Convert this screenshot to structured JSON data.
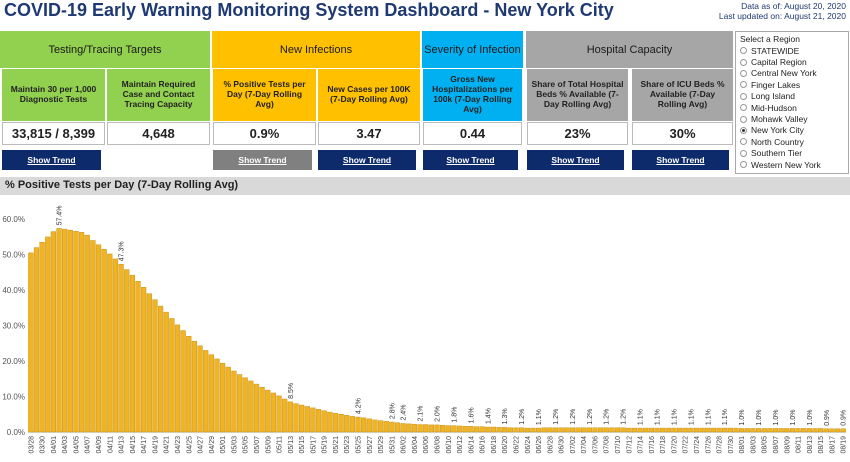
{
  "header": {
    "title": "COVID-19 Early Warning Monitoring System Dashboard - New York City",
    "data_as_of": "Data as of: August 20, 2020",
    "last_updated": "Last updated on: August 21, 2020"
  },
  "groups": [
    {
      "title": "Testing/Tracing Targets",
      "color": "#92d050",
      "metrics": [
        {
          "label": "Maintain 30 per 1,000 Diagnostic Tests",
          "value": "33,815 / 8,399",
          "button": "Show Trend"
        },
        {
          "label": "Maintain Required Case and Contact Tracing Capacity",
          "value": "4,648"
        }
      ]
    },
    {
      "title": "New Infections",
      "color": "#ffc000",
      "metrics": [
        {
          "label": "% Positive Tests per Day (7-Day Rolling Avg)",
          "value": "0.9%",
          "button": "Show Trend",
          "button_active": true
        },
        {
          "label": "New Cases per 100K (7-Day Rolling Avg)",
          "value": "3.47",
          "button": "Show Trend"
        }
      ]
    },
    {
      "title": "Severity of Infection",
      "color": "#00b0f0",
      "metrics": [
        {
          "label": "Gross New Hospitalizations per 100k (7-Day Rolling Avg)",
          "value": "0.44",
          "button": "Show Trend"
        }
      ]
    },
    {
      "title": "Hospital Capacity",
      "color": "#a6a6a6",
      "metrics": [
        {
          "label": "Share of Total Hospital Beds % Available (7-Day Rolling Avg)",
          "value": "23%",
          "button": "Show Trend"
        },
        {
          "label": "Share of ICU Beds % Available (7-Day Rolling Avg)",
          "value": "30%",
          "button": "Show Trend"
        }
      ]
    }
  ],
  "region": {
    "title": "Select a Region",
    "options": [
      "STATEWIDE",
      "Capital Region",
      "Central New York",
      "Finger Lakes",
      "Long Island",
      "Mid-Hudson",
      "Mohawk Valley",
      "New York City",
      "North Country",
      "Southern Tier",
      "Western New York"
    ],
    "selected": 7
  },
  "chart_data": {
    "type": "bar",
    "title": "% Positive Tests per Day (7-Day Rolling Avg)",
    "color": "#f0b323",
    "grid": false,
    "ylim": [
      0,
      64
    ],
    "yticks": [
      {
        "value": 0,
        "label": "0.0%"
      },
      {
        "value": 10,
        "label": "10.0%"
      },
      {
        "value": 20,
        "label": "20.0%"
      },
      {
        "value": 30,
        "label": "30.0%"
      },
      {
        "value": 40,
        "label": "40.0%"
      },
      {
        "value": 50,
        "label": "50.0%"
      },
      {
        "value": 60,
        "label": "60.0%"
      }
    ],
    "categories": [
      "03/28",
      null,
      "03/30",
      null,
      "04/01",
      null,
      "04/03",
      null,
      "04/05",
      null,
      "04/07",
      null,
      "04/09",
      null,
      "04/11",
      null,
      "04/13",
      null,
      "04/15",
      null,
      "04/17",
      null,
      "04/19",
      null,
      "04/21",
      null,
      "04/23",
      null,
      "04/25",
      null,
      "04/27",
      null,
      "04/29",
      null,
      "05/01",
      null,
      "05/03",
      null,
      "05/05",
      null,
      "05/07",
      null,
      "05/09",
      null,
      "05/11",
      null,
      "05/13",
      null,
      "05/15",
      null,
      "05/17",
      null,
      "05/19",
      null,
      "05/21",
      null,
      "05/23",
      null,
      "05/25",
      null,
      "05/27",
      null,
      "05/29",
      null,
      "05/31",
      null,
      "06/02",
      null,
      "06/04",
      null,
      "06/06",
      null,
      "06/08",
      null,
      "06/10",
      null,
      "06/12",
      null,
      "06/14",
      null,
      "06/16",
      null,
      "06/18",
      null,
      "06/20",
      null,
      "06/22",
      null,
      "06/24",
      null,
      "06/26",
      null,
      "06/28",
      null,
      "06/30",
      null,
      "07/02",
      null,
      "07/04",
      null,
      "07/06",
      null,
      "07/08",
      null,
      "07/10",
      null,
      "07/12",
      null,
      "07/14",
      null,
      "07/16",
      null,
      "07/18",
      null,
      "07/20",
      null,
      "07/22",
      null,
      "07/24",
      null,
      "07/26",
      null,
      "07/28",
      null,
      "07/30",
      null,
      "08/01",
      null,
      "08/03",
      null,
      "08/05",
      null,
      "08/07",
      null,
      "08/09",
      null,
      "08/11",
      null,
      "08/13",
      null,
      "08/15",
      null,
      "08/17",
      null,
      "08/19"
    ],
    "values": [
      50.5,
      52,
      53.5,
      55,
      56.5,
      57.4,
      57.2,
      56.9,
      56.6,
      56.3,
      55.5,
      54,
      52.8,
      51.5,
      50.2,
      48.8,
      47.3,
      45.8,
      44.2,
      42.5,
      40.8,
      39,
      37.3,
      35.5,
      33.8,
      32,
      30.2,
      28.6,
      27,
      25.6,
      24.3,
      23,
      21.8,
      20.6,
      19.4,
      18.3,
      17.2,
      16.2,
      15.3,
      14.4,
      13.5,
      12.6,
      11.8,
      11,
      10.2,
      9.3,
      8.5,
      8,
      7.6,
      7.2,
      6.8,
      6.4,
      6,
      5.6,
      5.3,
      5,
      4.7,
      4.4,
      4.2,
      4,
      3.7,
      3.4,
      3.2,
      3,
      2.8,
      2.6,
      2.4,
      2.3,
      2.2,
      2.1,
      2.1,
      2,
      2,
      1.9,
      1.8,
      1.8,
      1.7,
      1.6,
      1.6,
      1.5,
      1.5,
      1.4,
      1.4,
      1.3,
      1.3,
      1.2,
      1.2,
      1.2,
      1.1,
      1.1,
      1.1,
      1.2,
      1.2,
      1.2,
      1.2,
      1.2,
      1.2,
      1.2,
      1.2,
      1.2,
      1.2,
      1.2,
      1.2,
      1.2,
      1.2,
      1.2,
      1.1,
      1.1,
      1.1,
      1.1,
      1.1,
      1.1,
      1.1,
      1.1,
      1.1,
      1.1,
      1.1,
      1.1,
      1.1,
      1.1,
      1.1,
      1.1,
      1.1,
      1.1,
      1.1,
      1.1,
      1.0,
      1.0,
      1.0,
      1.0,
      1.0,
      1.0,
      1.0,
      1.0,
      1.0,
      1.0,
      1.0,
      1.0,
      1.0,
      1.0,
      1.0,
      0.9,
      0.9,
      0.9,
      0.9
    ],
    "value_labels": [
      null,
      null,
      null,
      null,
      null,
      "57.4%",
      null,
      null,
      null,
      null,
      null,
      null,
      null,
      null,
      null,
      null,
      "47.3%",
      null,
      null,
      null,
      null,
      null,
      null,
      null,
      null,
      null,
      null,
      null,
      null,
      null,
      null,
      null,
      null,
      null,
      null,
      null,
      null,
      null,
      null,
      null,
      null,
      null,
      null,
      null,
      null,
      null,
      "8.5%",
      null,
      null,
      null,
      null,
      null,
      null,
      null,
      null,
      null,
      null,
      null,
      "4.2%",
      null,
      null,
      null,
      null,
      null,
      "2.8%",
      null,
      "2.4%",
      null,
      null,
      "2.1%",
      null,
      null,
      "2.0%",
      null,
      null,
      "1.8%",
      null,
      null,
      "1.6%",
      null,
      null,
      "1.4%",
      null,
      null,
      "1.3%",
      null,
      null,
      "1.2%",
      null,
      null,
      "1.1%",
      null,
      null,
      "1.2%",
      null,
      null,
      "1.2%",
      null,
      null,
      "1.2%",
      null,
      null,
      "1.2%",
      null,
      null,
      "1.2%",
      null,
      null,
      "1.1%",
      null,
      null,
      "1.1%",
      null,
      null,
      "1.1%",
      null,
      null,
      "1.1%",
      null,
      null,
      "1.1%",
      null,
      null,
      "1.1%",
      null,
      null,
      "1.0%",
      null,
      null,
      "1.0%",
      null,
      null,
      "1.0%",
      null,
      null,
      "1.0%",
      null,
      null,
      "1.0%",
      null,
      null,
      "0.9%",
      null,
      null,
      "0.9%"
    ]
  }
}
